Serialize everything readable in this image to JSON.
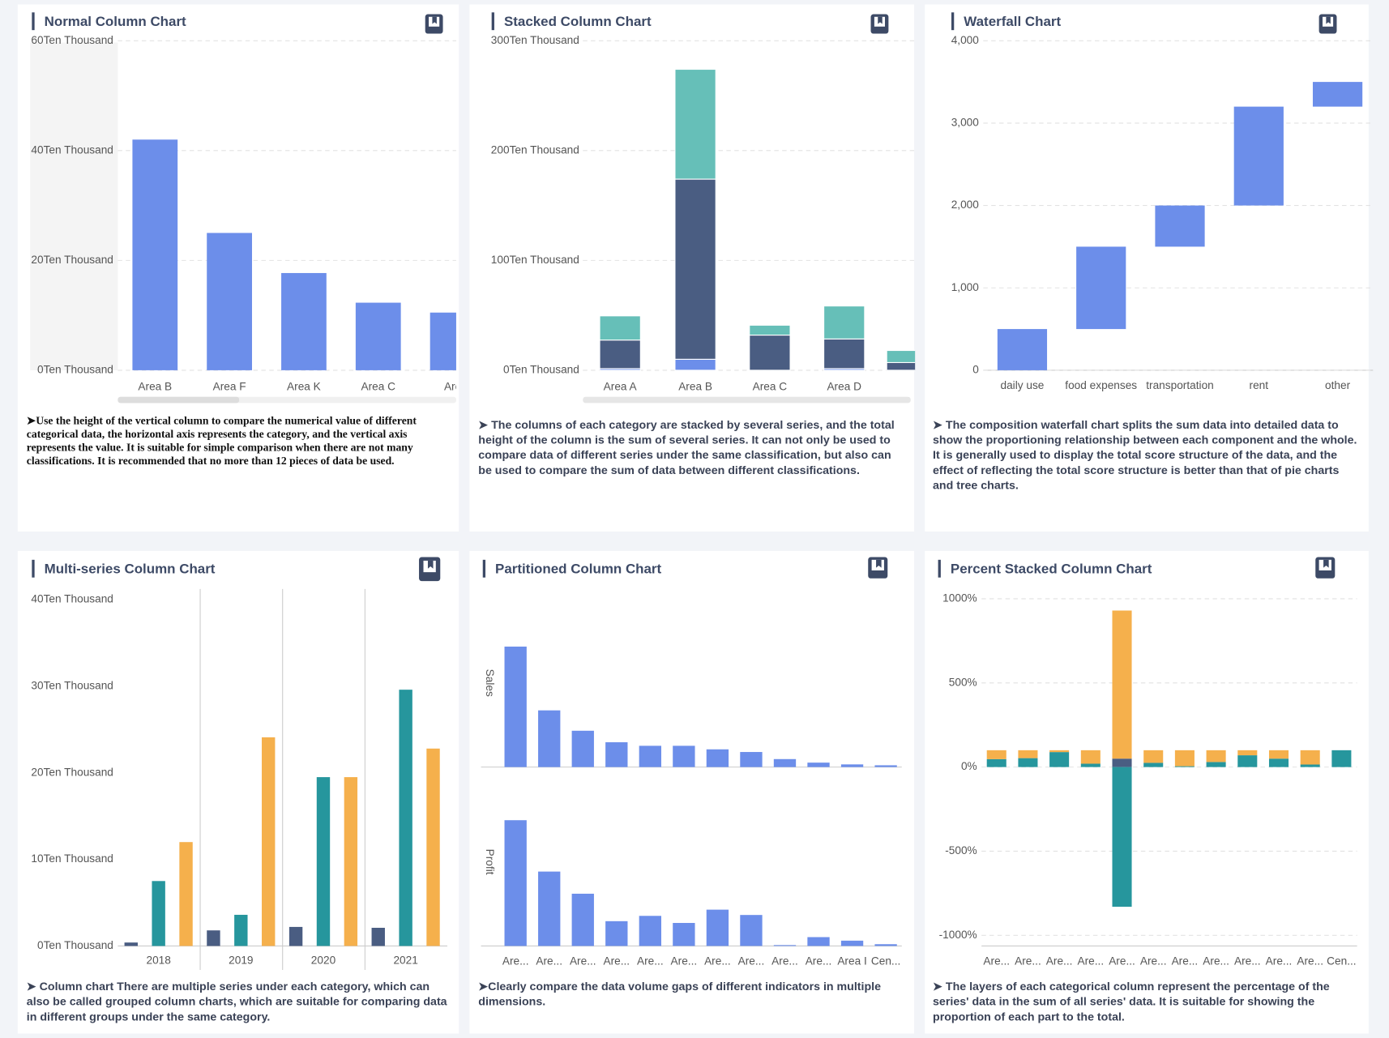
{
  "chart_data": [
    {
      "type": "bar",
      "title": "Normal Column Chart",
      "categories": [
        "Area B",
        "Area F",
        "Area K",
        "Area C",
        "Are"
      ],
      "values": [
        42,
        25,
        17.7,
        12.3,
        10.5
      ],
      "color": "#6c8eea",
      "ylim": [
        0,
        60
      ],
      "yticks": [
        {
          "value": 0,
          "label": "0Ten Thousand"
        },
        {
          "value": 20,
          "label": "20Ten Thousand"
        },
        {
          "value": 40,
          "label": "40Ten Thousand"
        },
        {
          "value": 60,
          "label": "60Ten Thousand"
        }
      ],
      "grid": true,
      "description": "➤Use the height of the vertical column to compare the numerical value of different categorical data, the horizontal axis represents the category, and the vertical axis represents the value. It is suitable for simple comparison when there are not many classifications. It is recommended that no more than 12 pieces of data be used."
    },
    {
      "type": "stacked_bar",
      "title": "Stacked Column Chart",
      "categories": [
        "Area A",
        "Area B",
        "Area C",
        "Area D",
        null
      ],
      "series": [
        {
          "color": "#6c8eea",
          "values": [
            1.5,
            10,
            0,
            1.5,
            0
          ]
        },
        {
          "color": "#4a5d82",
          "values": [
            26,
            164,
            32,
            27,
            7
          ]
        },
        {
          "color": "#66bfb8",
          "values": [
            22,
            100,
            9,
            30,
            11
          ]
        }
      ],
      "ylim": [
        0,
        300
      ],
      "yticks": [
        {
          "value": 0,
          "label": "0Ten Thousand"
        },
        {
          "value": 100,
          "label": "100Ten Thousand"
        },
        {
          "value": 200,
          "label": "200Ten Thousand"
        },
        {
          "value": 300,
          "label": "300Ten Thousand"
        }
      ],
      "grid": true,
      "description": "➤ The columns of each category are stacked by several series, and the total height of the column is the sum of several series. It can not only be used to compare data of different series under the same classification, but also can be used to compare the sum of data between different classifications."
    },
    {
      "type": "waterfall",
      "title": "Waterfall Chart",
      "categories": [
        "daily use",
        "food expenses",
        "transportation",
        "rent",
        "other"
      ],
      "values": [
        500,
        1000,
        500,
        1200,
        300
      ],
      "color": "#6c8eea",
      "ylim": [
        0,
        4000
      ],
      "yticks": [
        0,
        {
          "value": 1000,
          "label": "1,000"
        },
        {
          "value": 2000,
          "label": "2,000"
        },
        {
          "value": 3000,
          "label": "3,000"
        },
        {
          "value": 4000,
          "label": "4,000"
        }
      ],
      "grid": true,
      "description": "➤ The composition waterfall chart splits the sum data into detailed data to show the proportioning relationship between each component and the whole. It is generally used to display the total score structure of the data, and the effect of reflecting the total score structure is better than that of pie charts and tree charts."
    },
    {
      "type": "grouped_bar",
      "title": "Multi-series Column Chart",
      "categories": [
        "2018",
        "2019",
        "2020",
        "2021"
      ],
      "series": [
        {
          "color": "#4a5d82",
          "values": [
            0.4,
            1.8,
            2.2,
            2.1
          ]
        },
        {
          "color": "#26969d",
          "values": [
            7.5,
            3.6,
            19.5,
            29.6
          ]
        },
        {
          "color": "#f5b04c",
          "values": [
            12,
            24.1,
            19.5,
            22.8
          ]
        }
      ],
      "ylim": [
        0,
        40
      ],
      "yticks": [
        {
          "value": 0,
          "label": "0Ten Thousand"
        },
        {
          "value": 10,
          "label": "10Ten Thousand"
        },
        {
          "value": 20,
          "label": "20Ten Thousand"
        },
        {
          "value": 30,
          "label": "30Ten Thousand"
        },
        {
          "value": 40,
          "label": "40Ten Thousand"
        }
      ],
      "grid": false,
      "description": "➤ Column chart There are multiple series under each category, which can also be called grouped column charts, which are suitable for comparing data in different groups under the same category."
    },
    {
      "type": "partitioned_bar",
      "title": "Partitioned Column Chart",
      "categories": [
        "Are...",
        "Are...",
        "Are...",
        "Are...",
        "Are...",
        "Are...",
        "Are...",
        "Are...",
        "Are...",
        "Are...",
        "Area I",
        "Cen..."
      ],
      "series": [
        {
          "name": "Sales",
          "color": "#6c8eea",
          "values": [
            136,
            64,
            41,
            28,
            24,
            24,
            20,
            17,
            9,
            5,
            3,
            2
          ]
        },
        {
          "name": "Profit",
          "color": "#6c8eea",
          "values": [
            142,
            84,
            59,
            28,
            34,
            26,
            41,
            35,
            1,
            10,
            6,
            2
          ]
        }
      ],
      "description": "➤Clearly compare the data volume gaps of different indicators in multiple dimensions."
    },
    {
      "type": "percent_stacked_bar",
      "title": "Percent Stacked Column Chart",
      "categories": [
        "Are...",
        "Are...",
        "Are...",
        "Are...",
        "Are...",
        "Are...",
        "Are...",
        "Are...",
        "Are...",
        "Are...",
        "Are...",
        "Cen..."
      ],
      "series": [
        {
          "color": "#4a5d82",
          "values": [
            0,
            0,
            0,
            0,
            50,
            0,
            0,
            0,
            0,
            0,
            0,
            0
          ]
        },
        {
          "color": "#26969d",
          "values": [
            47,
            53,
            89,
            20,
            -830,
            25,
            5,
            30,
            70,
            50,
            15,
            100
          ]
        },
        {
          "color": "#f5b04c",
          "values": [
            53,
            47,
            11,
            80,
            880,
            75,
            95,
            70,
            30,
            50,
            85,
            0
          ]
        }
      ],
      "ylim": [
        -1000,
        1000
      ],
      "yticks": [
        {
          "value": -1000,
          "label": "-1000%"
        },
        {
          "value": -500,
          "label": "-500%"
        },
        {
          "value": 0,
          "label": "0%"
        },
        {
          "value": 500,
          "label": "500%"
        },
        {
          "value": 1000,
          "label": "1000%"
        }
      ],
      "grid": true,
      "description": "➤ The layers of each categorical column represent the percentage of the series' data in the sum of all series' data. It is suitable for showing the proportion of each part to the total."
    }
  ]
}
